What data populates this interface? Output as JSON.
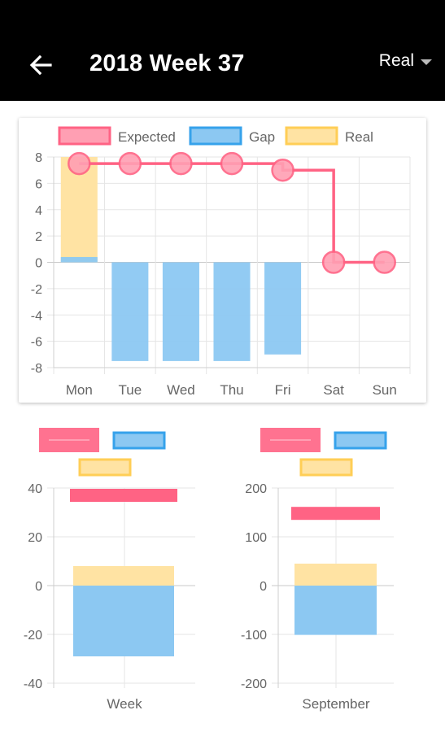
{
  "appbar": {
    "title": "2018 Week 37",
    "selector_value": "Real",
    "back_icon": "arrow-left-icon",
    "caret_icon": "caret-down-icon"
  },
  "colors": {
    "expected": "#ff6384",
    "expected_fill": "#ff9fb3",
    "gap_border": "#36a2eb",
    "gap_fill": "#8cc8f2",
    "real_border": "#ffce56",
    "real_fill": "#ffe3a3",
    "grid": "#e5e5e5",
    "tick_text": "#666666"
  },
  "chart_data": [
    {
      "type": "bar",
      "legend": [
        "Expected",
        "Gap",
        "Real"
      ],
      "legend_placement": "top",
      "categories": [
        "Mon",
        "Tue",
        "Wed",
        "Thu",
        "Fri",
        "Sat",
        "Sun"
      ],
      "series": [
        {
          "name": "Expected",
          "type": "line",
          "stepped": true,
          "values": [
            7.5,
            7.5,
            7.5,
            7.5,
            7,
            0,
            0
          ]
        },
        {
          "name": "Gap",
          "type": "bar",
          "values": [
            0.4,
            -7.5,
            -7.5,
            -7.5,
            -7,
            0,
            0
          ]
        },
        {
          "name": "Real",
          "type": "bar",
          "values": [
            8,
            0,
            0,
            0,
            0,
            0,
            0
          ]
        }
      ],
      "yticks": [
        8,
        6,
        4,
        2,
        0,
        -2,
        -4,
        -6,
        -8
      ],
      "ylim": [
        -8,
        8
      ],
      "grid": true
    },
    {
      "type": "bar",
      "horizontal_legend_swatches": true,
      "categories": [
        "Week"
      ],
      "series": [
        {
          "name": "Expected",
          "values": [
            37
          ]
        },
        {
          "name": "Gap",
          "values": [
            -29
          ]
        },
        {
          "name": "Real",
          "values": [
            8
          ]
        }
      ],
      "yticks": [
        40,
        20,
        0,
        -20,
        -40
      ],
      "ylim": [
        -40,
        40
      ],
      "grid": true
    },
    {
      "type": "bar",
      "categories": [
        "September"
      ],
      "series": [
        {
          "name": "Expected",
          "values": [
            148
          ]
        },
        {
          "name": "Gap",
          "values": [
            -101
          ]
        },
        {
          "name": "Real",
          "values": [
            45
          ]
        }
      ],
      "yticks": [
        200,
        100,
        0,
        -100,
        -200
      ],
      "ylim": [
        -200,
        200
      ],
      "grid": true
    }
  ]
}
